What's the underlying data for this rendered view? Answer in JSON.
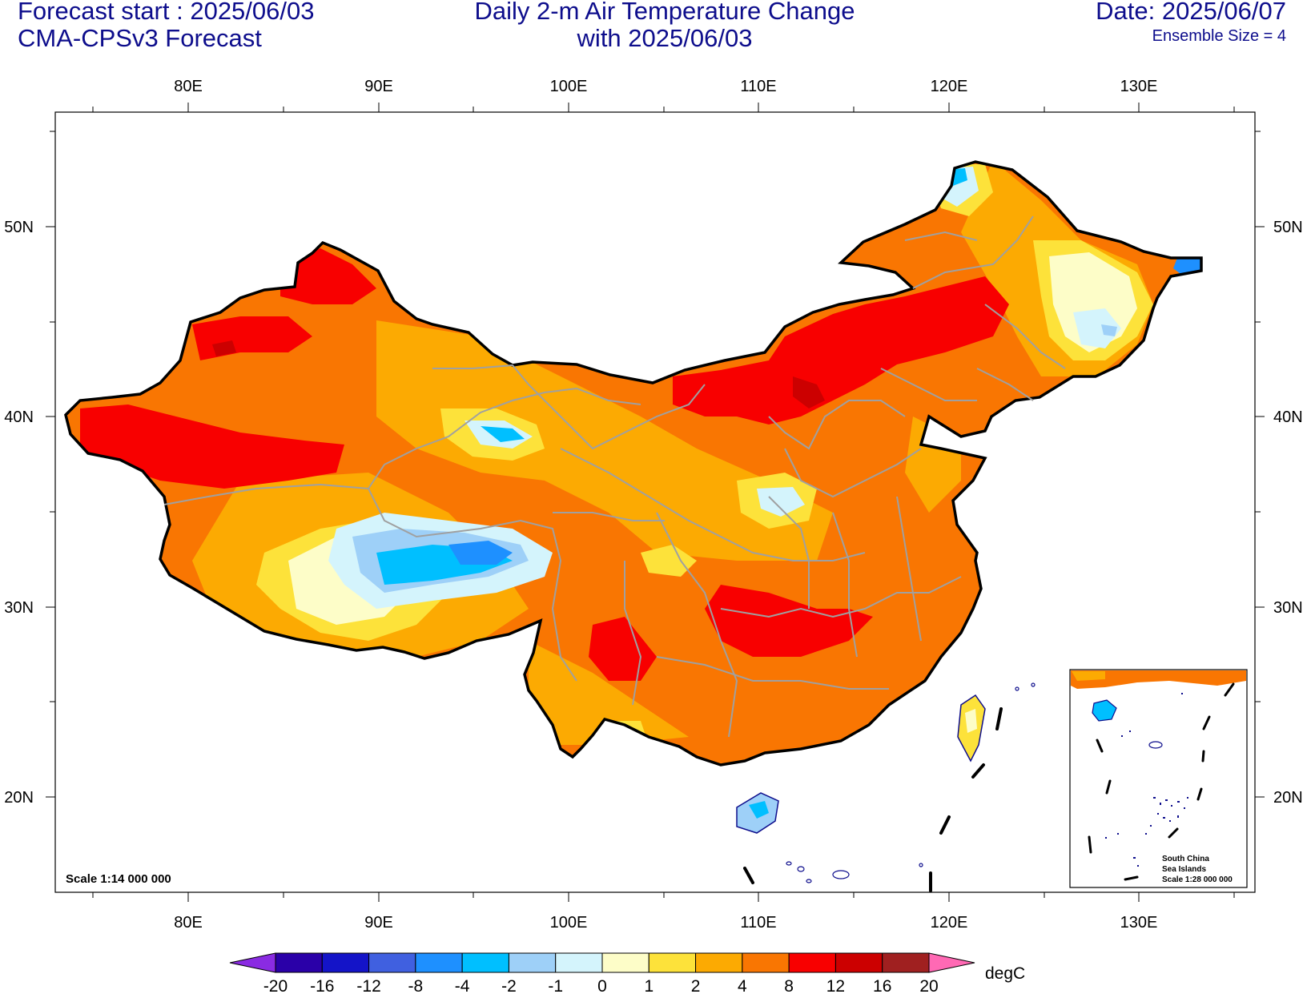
{
  "header": {
    "left_line1": "Forecast start : 2025/06/03",
    "left_line2": "CMA-CPSv3 Forecast",
    "center_line1": "Daily 2-m Air Temperature Change",
    "center_line2": "with 2025/06/03",
    "right_line1": "Date: 2025/06/07",
    "right_line2": "Ensemble Size = 4"
  },
  "axes": {
    "lon_labels": [
      "80E",
      "90E",
      "100E",
      "110E",
      "120E",
      "130E"
    ],
    "lat_labels": [
      "50N",
      "40N",
      "30N",
      "20N"
    ]
  },
  "map": {
    "scale_note": "Scale 1:14 000 000",
    "inset_title_line1": "South China",
    "inset_title_line2": "Sea Islands",
    "inset_scale": "Scale 1:28 000 000"
  },
  "colorbar": {
    "unit": "degC",
    "levels": [
      "-20",
      "-16",
      "-12",
      "-8",
      "-4",
      "-2",
      "-1",
      "0",
      "1",
      "2",
      "4",
      "8",
      "12",
      "16",
      "20"
    ],
    "colors": [
      "#2a00a8",
      "#1414c8",
      "#4060e0",
      "#1e90ff",
      "#00bfff",
      "#9ed0f8",
      "#d4f4fc",
      "#fdfdc8",
      "#fde23a",
      "#fcaa02",
      "#f97602",
      "#f80000",
      "#cc0000",
      "#a02020"
    ],
    "low_arrow_color": "#8a2be2",
    "high_arrow_color": "#ff69b4"
  }
}
